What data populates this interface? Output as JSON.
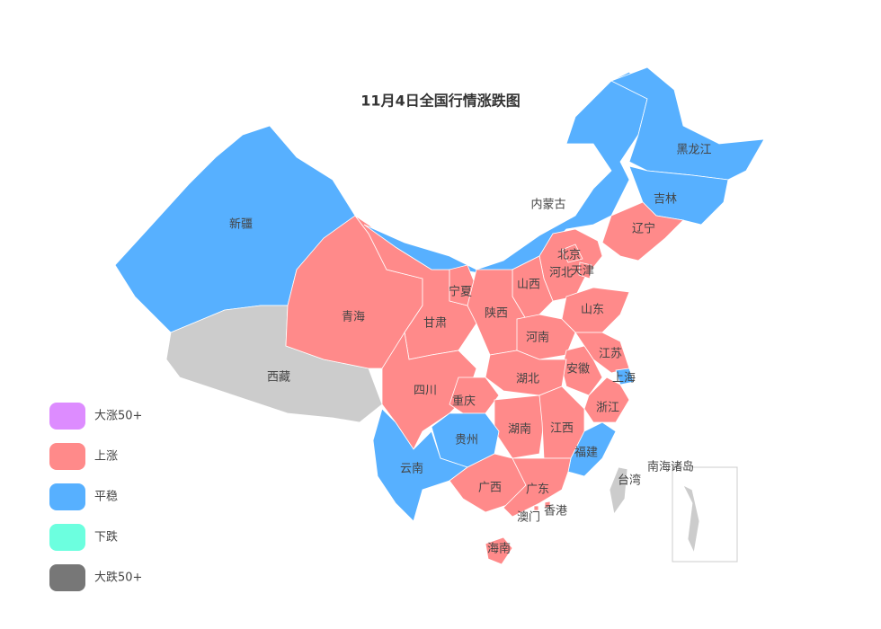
{
  "title": "11月4日全国行情涨跌图",
  "no_data_color": "#cccccc",
  "legend": [
    {
      "label": "大涨50+",
      "color": "#dd8cff"
    },
    {
      "label": "上涨",
      "color": "#ff8a8a"
    },
    {
      "label": "平稳",
      "color": "#57b0ff"
    },
    {
      "label": "下跌",
      "color": "#6cffdf"
    },
    {
      "label": "大跌50+",
      "color": "#777777"
    }
  ],
  "regions": [
    {
      "name": "新疆",
      "status": "平稳"
    },
    {
      "name": "西藏",
      "status": null
    },
    {
      "name": "青海",
      "status": "上涨"
    },
    {
      "name": "甘肃",
      "status": "上涨"
    },
    {
      "name": "内蒙古",
      "status": "平稳"
    },
    {
      "name": "黑龙江",
      "status": "平稳"
    },
    {
      "name": "吉林",
      "status": "平稳"
    },
    {
      "name": "辽宁",
      "status": "上涨"
    },
    {
      "name": "河北",
      "status": "上涨"
    },
    {
      "name": "北京",
      "status": "上涨"
    },
    {
      "name": "天津",
      "status": "上涨"
    },
    {
      "name": "山西",
      "status": "上涨"
    },
    {
      "name": "宁夏",
      "status": "上涨"
    },
    {
      "name": "陕西",
      "status": "上涨"
    },
    {
      "name": "山东",
      "status": "上涨"
    },
    {
      "name": "河南",
      "status": "上涨"
    },
    {
      "name": "江苏",
      "status": "上涨"
    },
    {
      "name": "上海",
      "status": "平稳"
    },
    {
      "name": "安徽",
      "status": "上涨"
    },
    {
      "name": "湖北",
      "status": "上涨"
    },
    {
      "name": "浙江",
      "status": "上涨"
    },
    {
      "name": "四川",
      "status": "上涨"
    },
    {
      "name": "重庆",
      "status": "上涨"
    },
    {
      "name": "湖南",
      "status": "上涨"
    },
    {
      "name": "江西",
      "status": "上涨"
    },
    {
      "name": "贵州",
      "status": "平稳"
    },
    {
      "name": "福建",
      "status": "平稳"
    },
    {
      "name": "云南",
      "status": "平稳"
    },
    {
      "name": "广西",
      "status": "上涨"
    },
    {
      "name": "广东",
      "status": "上涨"
    },
    {
      "name": "台湾",
      "status": null
    },
    {
      "name": "香港",
      "status": "上涨"
    },
    {
      "name": "澳门",
      "status": "上涨"
    },
    {
      "name": "海南",
      "status": "上涨"
    },
    {
      "name": "南海诸岛",
      "status": null
    }
  ]
}
